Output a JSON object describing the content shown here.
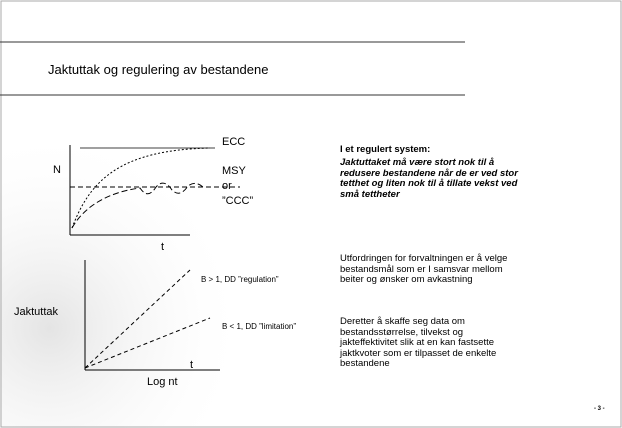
{
  "slide": {
    "title": "Jaktuttak og regulering av bestandene",
    "page_number": "- 3 -"
  },
  "diagram_top": {
    "y_label": "N",
    "x_label": "t",
    "ecc_label": "ECC",
    "msy_label_lines": [
      "MSY",
      "or",
      "”CCC”"
    ]
  },
  "diagram_bottom": {
    "y_label": "Jaktuttak",
    "x_label_t": "t",
    "x_label": "Log nt",
    "line_labels": [
      "B > 1, DD ”regulation”",
      "B < 1, DD ”limitation”"
    ]
  },
  "text": {
    "heading": "I et regulert system:",
    "emphasis_lines": [
      "Jaktuttaket må være stort nok til å",
      "redusere bestandene når de er ved stor",
      "tetthet og liten nok til å tillate vekst ved",
      "små tettheter"
    ],
    "paragraphs": [
      [
        "Utfordringen for forvaltningen er å velge",
        "bestandsmål som er I samsvar mellom",
        "beiter og ønsker om avkastning"
      ],
      [
        "Deretter å skaffe seg data om",
        "bestandsstørrelse, tilvekst og",
        "jakteffektivitet slik at en kan fastsette",
        "jaktkvoter som er tilpasset de enkelte",
        "bestandene"
      ]
    ]
  }
}
